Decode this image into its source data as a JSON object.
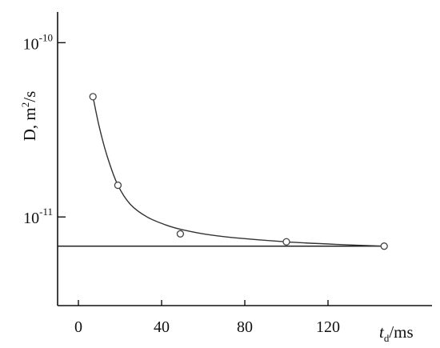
{
  "chart_data": {
    "type": "scatter",
    "title": "",
    "xlabel": {
      "var": "t",
      "sub": "d",
      "unit": "/ms"
    },
    "ylabel": {
      "prefix": "D, m",
      "sup": "2",
      "suffix": "/s"
    },
    "x_ticks": [
      "0",
      "40",
      "80",
      "120"
    ],
    "x_tick_values": [
      0,
      40,
      80,
      120
    ],
    "y_ticks": [
      {
        "value": 1e-10,
        "base": "10",
        "exp": "-10"
      },
      {
        "value": 1e-11,
        "base": "10",
        "exp": "-11"
      }
    ],
    "y_scale": "log",
    "xlim": [
      -10,
      170
    ],
    "ylim": [
      3.1e-12,
      1.5e-10
    ],
    "grid": false,
    "series": [
      {
        "marker": "circle",
        "x": [
          7,
          19,
          49,
          100,
          147
        ],
        "y": [
          4.9e-11,
          1.52e-11,
          8e-12,
          7.2e-12,
          6.8e-12
        ]
      }
    ],
    "fit_curve": {
      "x": [
        7,
        10,
        14,
        19,
        25,
        33,
        42,
        49,
        60,
        75,
        100,
        125,
        147
      ],
      "y": [
        4.9e-11,
        3.3e-11,
        2.2e-11,
        1.52e-11,
        1.18e-11,
        1e-11,
        9e-12,
        8.5e-12,
        8e-12,
        7.6e-12,
        7.2e-12,
        6.95e-12,
        6.8e-12
      ]
    },
    "reference_line": {
      "y": 6.8e-12
    },
    "colors": {
      "axis": "#111111",
      "line": "#333333",
      "marker_fill": "#ffffff",
      "marker_stroke": "#444444"
    }
  }
}
